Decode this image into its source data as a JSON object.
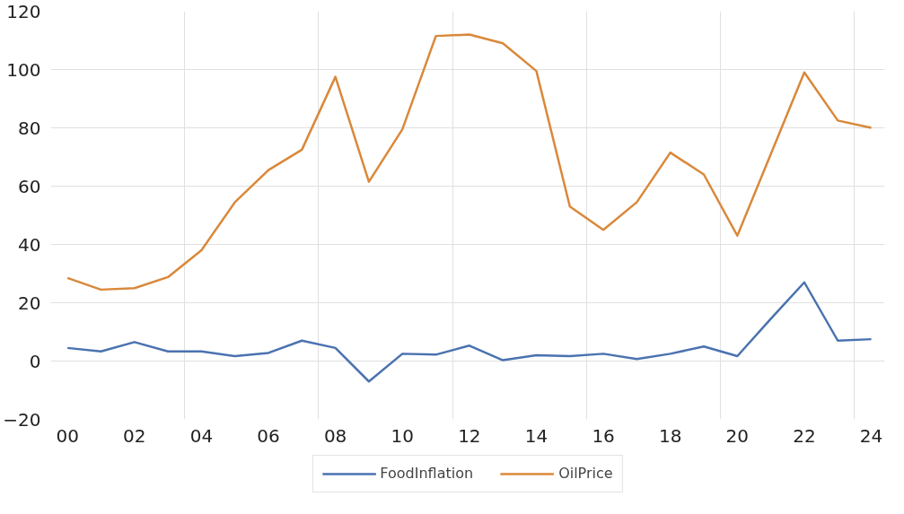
{
  "chart_data": {
    "type": "line",
    "categories": [
      "00",
      null,
      "02",
      null,
      "04",
      null,
      "06",
      null,
      "08",
      null,
      "10",
      null,
      "12",
      null,
      "14",
      null,
      "16",
      null,
      "18",
      null,
      "20",
      null,
      "22",
      null,
      "24"
    ],
    "series": [
      {
        "name": "FoodInflation",
        "color": "#4a72b0",
        "values": [
          4.5,
          3.3,
          6.5,
          3.3,
          3.3,
          1.7,
          2.8,
          7,
          4.5,
          -7,
          2.5,
          2.2,
          5.3,
          0.3,
          2,
          1.7,
          2.5,
          0.7,
          2.5,
          5,
          1.7,
          14.5,
          27,
          7,
          7.5
        ]
      },
      {
        "name": "OilPrice",
        "color": "#d9883a",
        "values": [
          28.5,
          24.5,
          25,
          28.8,
          38,
          54.5,
          65.5,
          72.5,
          97.5,
          61.5,
          79.5,
          111.5,
          112,
          109,
          99.5,
          53,
          45,
          54.5,
          71.5,
          64,
          43,
          71,
          99,
          82.5,
          80
        ]
      }
    ],
    "ylim": [
      -20,
      120
    ],
    "yticks": [
      -20,
      0,
      20,
      40,
      60,
      80,
      100,
      120
    ],
    "grid": true,
    "legend": "bottom",
    "line_style": "solid"
  }
}
